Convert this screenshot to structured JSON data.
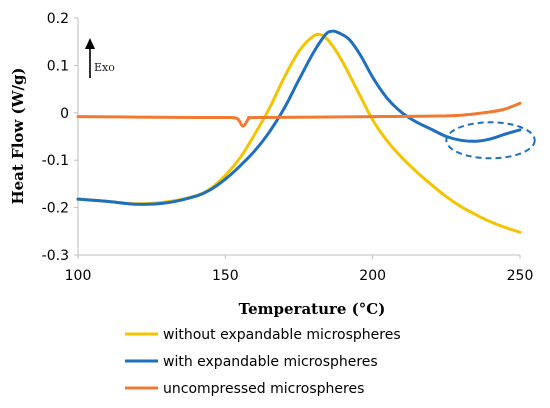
{
  "chart_data": {
    "type": "line",
    "title": "",
    "xlabel": "Temperature (°C)",
    "ylabel": "Heat Flow (W/g)",
    "xlim": [
      100,
      250
    ],
    "ylim": [
      -0.3,
      0.2
    ],
    "x_ticks": [
      "100",
      "150",
      "200",
      "250"
    ],
    "y_ticks": [
      "-0.3",
      "-0.2",
      "-0.1",
      "0",
      "0.1",
      "0.2"
    ],
    "grid": false,
    "legend_position": "bottom",
    "annotation": "Exo",
    "series": [
      {
        "name": "without expandable microspheres",
        "color": "#f5c400",
        "points": [
          [
            100,
            -0.182
          ],
          [
            110,
            -0.187
          ],
          [
            120,
            -0.192
          ],
          [
            130,
            -0.188
          ],
          [
            140,
            -0.175
          ],
          [
            145,
            -0.16
          ],
          [
            150,
            -0.132
          ],
          [
            155,
            -0.095
          ],
          [
            160,
            -0.045
          ],
          [
            165,
            0.01
          ],
          [
            170,
            0.075
          ],
          [
            175,
            0.13
          ],
          [
            180,
            0.162
          ],
          [
            183,
            0.163
          ],
          [
            186,
            0.145
          ],
          [
            190,
            0.105
          ],
          [
            195,
            0.045
          ],
          [
            200,
            -0.015
          ],
          [
            205,
            -0.06
          ],
          [
            210,
            -0.095
          ],
          [
            215,
            -0.125
          ],
          [
            220,
            -0.152
          ],
          [
            225,
            -0.177
          ],
          [
            230,
            -0.198
          ],
          [
            235,
            -0.215
          ],
          [
            240,
            -0.23
          ],
          [
            245,
            -0.242
          ],
          [
            250,
            -0.252
          ]
        ]
      },
      {
        "name": "with expandable microspheres",
        "color": "#1f6fbf",
        "points": [
          [
            100,
            -0.182
          ],
          [
            110,
            -0.187
          ],
          [
            120,
            -0.193
          ],
          [
            130,
            -0.19
          ],
          [
            140,
            -0.176
          ],
          [
            145,
            -0.162
          ],
          [
            150,
            -0.14
          ],
          [
            155,
            -0.112
          ],
          [
            160,
            -0.08
          ],
          [
            165,
            -0.04
          ],
          [
            170,
            0.01
          ],
          [
            175,
            0.07
          ],
          [
            180,
            0.128
          ],
          [
            184,
            0.165
          ],
          [
            186,
            0.172
          ],
          [
            188,
            0.17
          ],
          [
            192,
            0.155
          ],
          [
            196,
            0.12
          ],
          [
            200,
            0.075
          ],
          [
            205,
            0.03
          ],
          [
            210,
            0.0
          ],
          [
            215,
            -0.02
          ],
          [
            220,
            -0.035
          ],
          [
            225,
            -0.05
          ],
          [
            230,
            -0.058
          ],
          [
            235,
            -0.06
          ],
          [
            240,
            -0.055
          ],
          [
            245,
            -0.045
          ],
          [
            250,
            -0.036
          ]
        ]
      },
      {
        "name": "uncompressed microspheres",
        "color": "#f07a30",
        "points": [
          [
            100,
            -0.008
          ],
          [
            120,
            -0.009
          ],
          [
            140,
            -0.01
          ],
          [
            150,
            -0.01
          ],
          [
            154,
            -0.012
          ],
          [
            156,
            -0.028
          ],
          [
            158,
            -0.012
          ],
          [
            160,
            -0.01
          ],
          [
            180,
            -0.009
          ],
          [
            200,
            -0.008
          ],
          [
            220,
            -0.007
          ],
          [
            230,
            -0.005
          ],
          [
            240,
            0.002
          ],
          [
            245,
            0.008
          ],
          [
            250,
            0.02
          ]
        ]
      }
    ],
    "highlight_ellipse": {
      "center": [
        240,
        -0.058
      ],
      "x_radius": 15,
      "y_radius": 0.038,
      "color": "#1f6fbf"
    }
  }
}
